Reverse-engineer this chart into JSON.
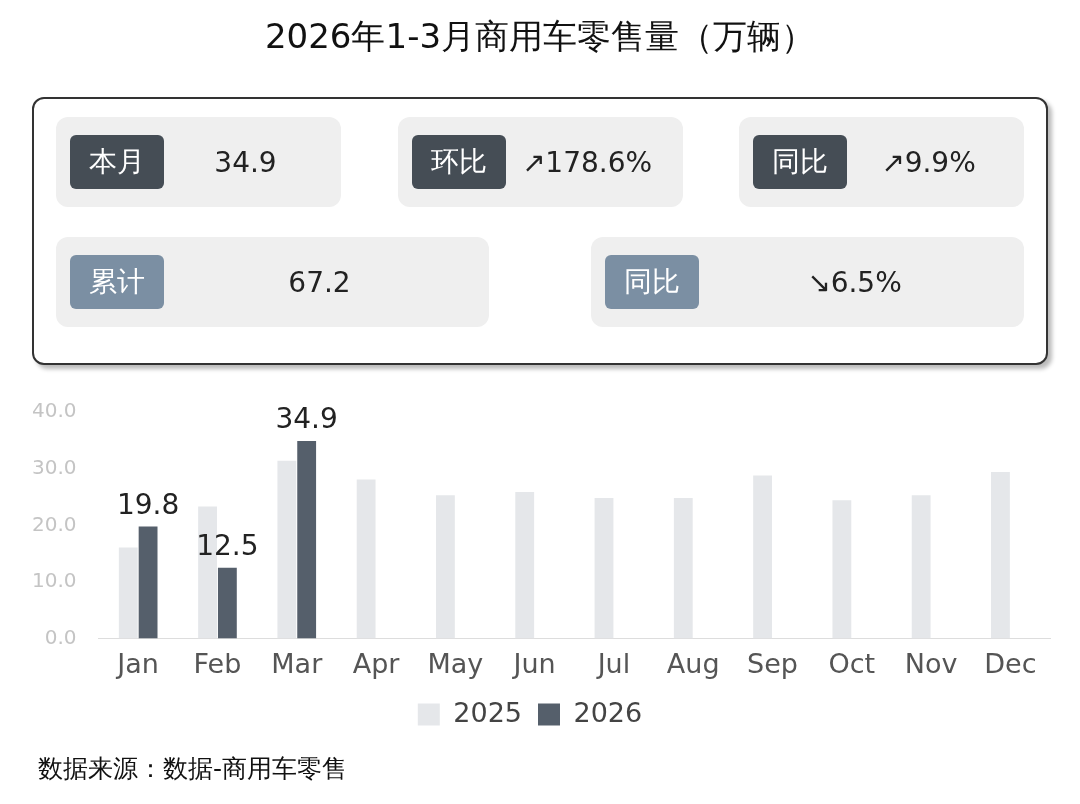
{
  "chart_data": [
    {
      "type": "other",
      "annotations": [
        "本月",
        "34.9",
        "环比",
        "↗178.6%",
        "同比",
        "↗9.9%",
        "累计",
        "67.2",
        "同比",
        "↘6.5%"
      ]
    },
    {
      "type": "bar",
      "title": "2026年1-3月商用车零售量（万辆）",
      "categories": [
        "Jan",
        "Feb",
        "Mar",
        "Apr",
        "May",
        "Jun",
        "Jul",
        "Aug",
        "Sep",
        "Oct",
        "Nov",
        "Dec"
      ],
      "series": [
        {
          "name": "2025",
          "color": "#e5e7ea",
          "values": [
            16.1,
            23.3,
            31.4,
            28.1,
            25.3,
            25.9,
            24.8,
            24.8,
            28.8,
            24.4,
            25.3,
            29.4
          ]
        },
        {
          "name": "2026",
          "color": "#555f6b",
          "values": [
            19.8,
            12.5,
            34.9,
            null,
            null,
            null,
            null,
            null,
            null,
            null,
            null,
            null
          ],
          "value_labels": [
            "19.8",
            "12.5",
            "34.9",
            null,
            null,
            null,
            null,
            null,
            null,
            null,
            null,
            null
          ]
        }
      ],
      "ylim": [
        0,
        40
      ],
      "yticks": [
        {
          "value": 0,
          "label": "0.0"
        },
        {
          "value": 10,
          "label": "10.0"
        },
        {
          "value": 20,
          "label": "20.0"
        },
        {
          "value": 30,
          "label": "30.0"
        },
        {
          "value": 40,
          "label": "40.0"
        }
      ],
      "grid": false,
      "legend": "bottom",
      "annotations": [
        "数据来源：数据-商用车零售"
      ]
    }
  ]
}
